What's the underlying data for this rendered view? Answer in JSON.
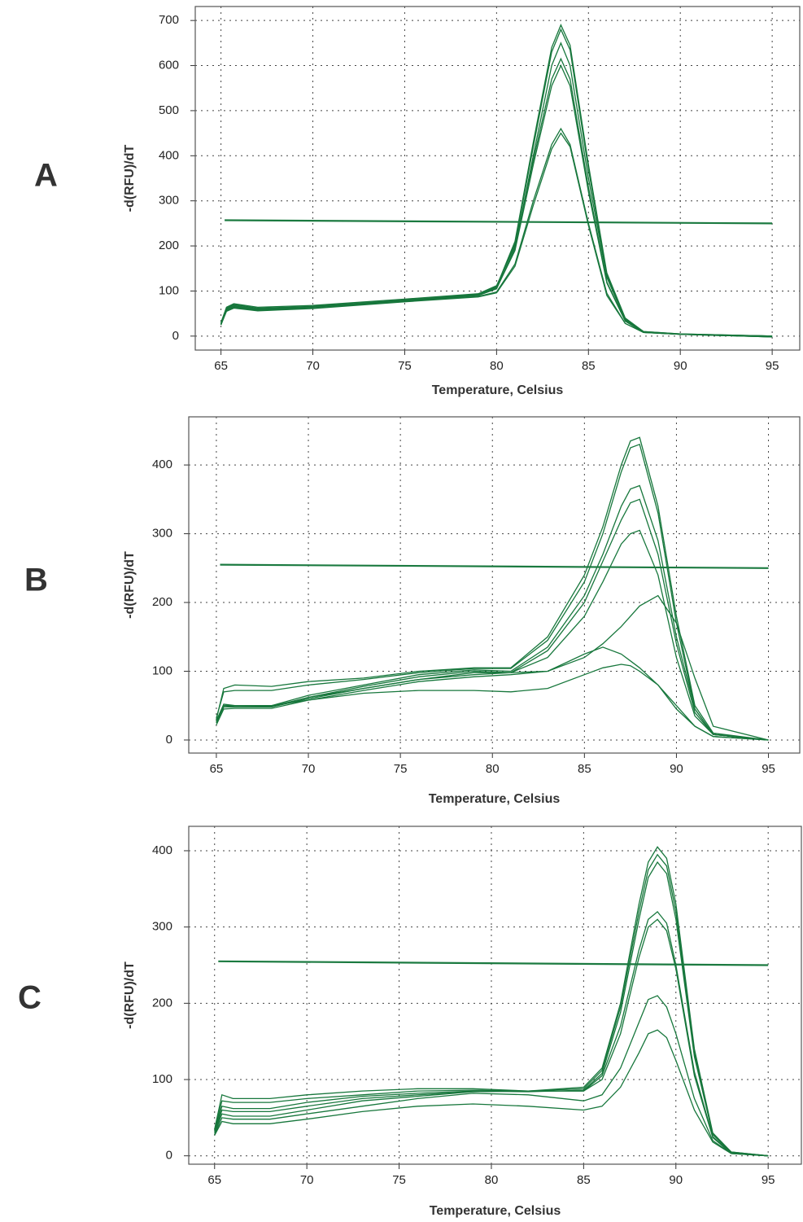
{
  "chart_data": [
    {
      "type": "line",
      "panel_label": "A",
      "x_label": "Temperature, Celsius",
      "y_label": "-d(RFU)/dT",
      "xlim": [
        63.6,
        96.5
      ],
      "ylim": [
        -31,
        731
      ],
      "xticks": [
        65,
        70,
        75,
        80,
        85,
        90,
        95
      ],
      "yticks": [
        0,
        100,
        200,
        300,
        400,
        500,
        600,
        700
      ],
      "grid": true,
      "x": [
        65,
        65.3,
        65.7,
        67,
        70,
        75,
        79,
        80,
        81,
        82,
        83,
        83.5,
        84,
        85,
        86,
        87,
        88,
        90,
        95
      ],
      "series": [
        {
          "color": "#17773c",
          "values": [
            25,
            62,
            70,
            62,
            66,
            80,
            92,
            110,
            210,
            430,
            640,
            690,
            645,
            380,
            140,
            40,
            10,
            5,
            0
          ]
        },
        {
          "color": "#17773c",
          "values": [
            28,
            60,
            68,
            60,
            65,
            79,
            91,
            108,
            205,
            420,
            630,
            680,
            635,
            370,
            135,
            38,
            10,
            5,
            0
          ]
        },
        {
          "color": "#17773c",
          "values": [
            25,
            58,
            66,
            58,
            64,
            78,
            90,
            105,
            195,
            400,
            600,
            650,
            600,
            350,
            130,
            36,
            9,
            4,
            0
          ]
        },
        {
          "color": "#17773c",
          "values": [
            30,
            64,
            72,
            64,
            68,
            82,
            94,
            112,
            200,
            390,
            570,
            615,
            570,
            330,
            120,
            34,
            9,
            4,
            0
          ]
        },
        {
          "color": "#17773c",
          "values": [
            26,
            60,
            67,
            60,
            65,
            80,
            92,
            106,
            190,
            380,
            555,
            600,
            555,
            320,
            118,
            33,
            8,
            4,
            -2
          ]
        },
        {
          "color": "#17773c",
          "values": [
            27,
            56,
            64,
            57,
            62,
            77,
            88,
            98,
            160,
            300,
            425,
            460,
            425,
            250,
            95,
            28,
            8,
            4,
            -2
          ]
        },
        {
          "color": "#17773c",
          "values": [
            25,
            55,
            62,
            56,
            61,
            76,
            87,
            96,
            155,
            290,
            415,
            450,
            420,
            245,
            90,
            28,
            8,
            4,
            -2
          ]
        }
      ],
      "threshold": {
        "color": "#1b7a40",
        "x": [
          65.2,
          95
        ],
        "values": [
          257,
          250
        ]
      }
    },
    {
      "type": "line",
      "panel_label": "B",
      "x_label": "Temperature, Celsius",
      "y_label": "-d(RFU)/dT",
      "xlim": [
        63.5,
        96.7
      ],
      "ylim": [
        -19,
        470
      ],
      "xticks": [
        65,
        70,
        75,
        80,
        85,
        90,
        95
      ],
      "yticks": [
        0,
        100,
        200,
        300,
        400
      ],
      "grid": true,
      "x": [
        65,
        65.4,
        66,
        68,
        70,
        73,
        76,
        79,
        81,
        83,
        85,
        86,
        87,
        87.5,
        88,
        89,
        90,
        91,
        92,
        95
      ],
      "series": [
        {
          "color": "#17773c",
          "values": [
            30,
            75,
            80,
            78,
            85,
            90,
            100,
            105,
            105,
            150,
            240,
            310,
            400,
            435,
            440,
            340,
            180,
            50,
            10,
            0
          ]
        },
        {
          "color": "#17773c",
          "values": [
            32,
            70,
            72,
            72,
            80,
            88,
            98,
            104,
            104,
            145,
            230,
            300,
            390,
            425,
            430,
            330,
            170,
            45,
            8,
            0
          ]
        },
        {
          "color": "#17773c",
          "values": [
            28,
            52,
            50,
            50,
            65,
            80,
            95,
            102,
            100,
            135,
            210,
            270,
            340,
            365,
            370,
            290,
            150,
            45,
            8,
            0
          ]
        },
        {
          "color": "#17773c",
          "values": [
            25,
            50,
            48,
            48,
            62,
            78,
            92,
            100,
            98,
            130,
            200,
            260,
            320,
            345,
            350,
            270,
            140,
            40,
            8,
            0
          ]
        },
        {
          "color": "#17773c",
          "values": [
            27,
            50,
            50,
            49,
            62,
            75,
            88,
            98,
            98,
            120,
            180,
            230,
            285,
            300,
            305,
            240,
            120,
            35,
            8,
            0
          ]
        },
        {
          "color": "#17773c",
          "values": [
            25,
            48,
            48,
            48,
            60,
            75,
            88,
            95,
            98,
            100,
            120,
            140,
            165,
            180,
            195,
            210,
            170,
            90,
            20,
            0
          ]
        },
        {
          "color": "#17773c",
          "values": [
            22,
            45,
            46,
            46,
            58,
            72,
            85,
            92,
            95,
            100,
            125,
            135,
            125,
            115,
            105,
            80,
            50,
            20,
            5,
            0
          ]
        },
        {
          "color": "#17773c",
          "values": [
            25,
            50,
            50,
            50,
            58,
            68,
            72,
            72,
            70,
            75,
            95,
            105,
            110,
            108,
            100,
            80,
            45,
            20,
            5,
            0
          ]
        }
      ],
      "threshold": {
        "color": "#1b7a40",
        "x": [
          65.2,
          95
        ],
        "values": [
          255,
          250
        ]
      }
    },
    {
      "type": "line",
      "panel_label": "C",
      "x_label": "Temperature, Celsius",
      "y_label": "-d(RFU)/dT",
      "xlim": [
        63.6,
        96.8
      ],
      "ylim": [
        -11,
        432
      ],
      "xticks": [
        65,
        70,
        75,
        80,
        85,
        90,
        95
      ],
      "yticks": [
        0,
        100,
        200,
        300,
        400
      ],
      "grid": true,
      "x": [
        65,
        65.4,
        66,
        68,
        70,
        73,
        76,
        79,
        82,
        85,
        86,
        87,
        88,
        88.5,
        89,
        89.5,
        90,
        91,
        92,
        93,
        95
      ],
      "series": [
        {
          "color": "#17773c",
          "values": [
            35,
            80,
            75,
            75,
            80,
            85,
            88,
            88,
            85,
            90,
            115,
            200,
            330,
            385,
            405,
            390,
            330,
            140,
            30,
            5,
            0
          ]
        },
        {
          "color": "#17773c",
          "values": [
            33,
            72,
            70,
            70,
            75,
            80,
            85,
            86,
            85,
            88,
            112,
            195,
            320,
            375,
            395,
            380,
            320,
            135,
            28,
            5,
            0
          ]
        },
        {
          "color": "#17773c",
          "values": [
            32,
            65,
            62,
            62,
            70,
            78,
            82,
            85,
            84,
            86,
            108,
            188,
            310,
            365,
            385,
            370,
            310,
            130,
            28,
            4,
            0
          ]
        },
        {
          "color": "#17773c",
          "values": [
            30,
            60,
            58,
            58,
            65,
            75,
            80,
            84,
            85,
            85,
            105,
            170,
            270,
            310,
            320,
            305,
            250,
            110,
            25,
            4,
            0
          ]
        },
        {
          "color": "#17773c",
          "values": [
            30,
            55,
            52,
            52,
            60,
            72,
            78,
            84,
            85,
            85,
            100,
            160,
            260,
            300,
            310,
            295,
            245,
            105,
            24,
            3,
            0
          ]
        },
        {
          "color": "#17773c",
          "values": [
            28,
            50,
            48,
            48,
            55,
            65,
            75,
            82,
            80,
            72,
            80,
            115,
            175,
            205,
            210,
            195,
            160,
            75,
            20,
            3,
            0
          ]
        },
        {
          "color": "#17773c",
          "values": [
            27,
            45,
            42,
            42,
            48,
            58,
            65,
            68,
            65,
            60,
            65,
            90,
            135,
            160,
            165,
            155,
            125,
            60,
            18,
            3,
            0
          ]
        }
      ],
      "threshold": {
        "color": "#1b7a40",
        "x": [
          65.2,
          95
        ],
        "values": [
          255,
          250
        ]
      }
    }
  ]
}
